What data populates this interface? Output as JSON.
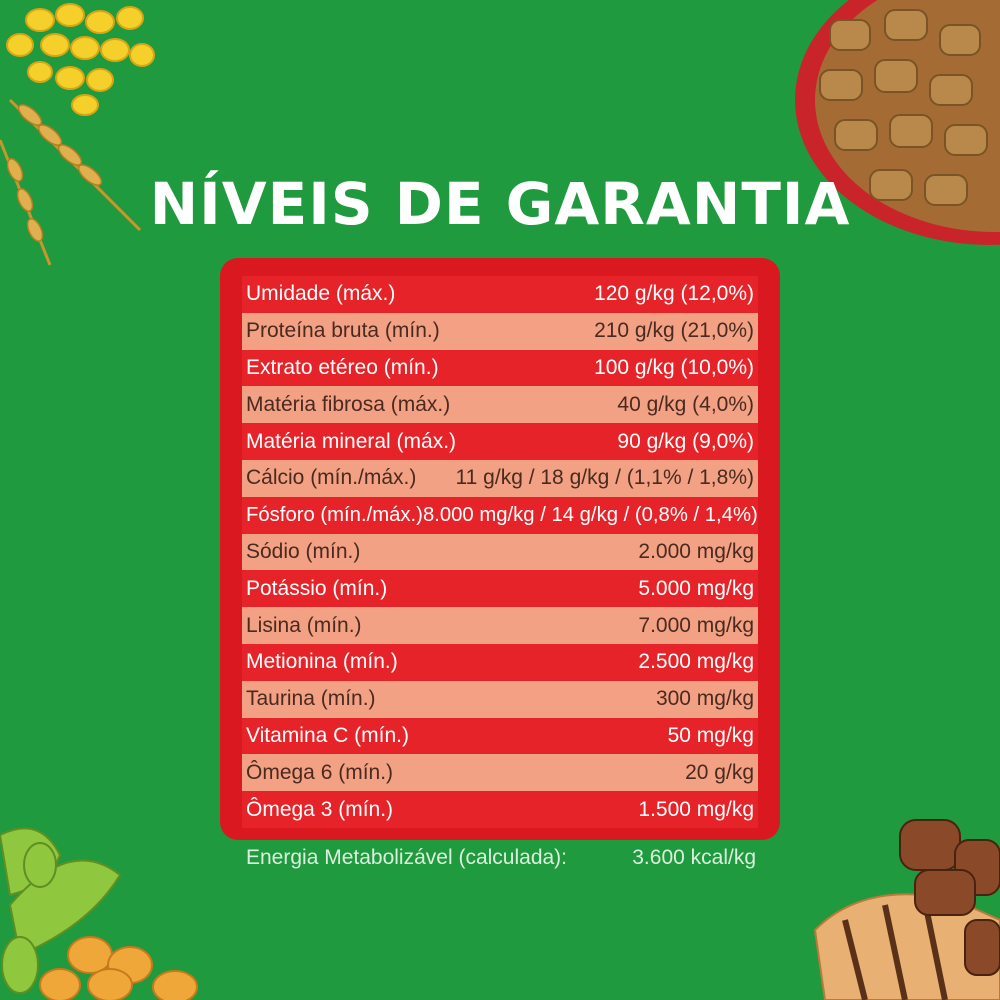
{
  "title": "NÍVEIS DE GARANTIA",
  "colors": {
    "background": "#1f9a3e",
    "table_border": "#d9191f",
    "row_dark": "#e52328",
    "row_light": "#f3a184"
  },
  "rows": [
    {
      "label": "Umidade (máx.)",
      "value": "120 g/kg (12,0%)"
    },
    {
      "label": "Proteína bruta (mín.)",
      "value": "210 g/kg (21,0%)"
    },
    {
      "label": "Extrato etéreo (mín.)",
      "value": "100 g/kg (10,0%)"
    },
    {
      "label": "Matéria fibrosa (máx.)",
      "value": "40 g/kg (4,0%)"
    },
    {
      "label": "Matéria mineral (máx.)",
      "value": "90 g/kg (9,0%)"
    },
    {
      "label": "Cálcio (mín./máx.)",
      "value": "11 g/kg / 18 g/kg / (1,1% / 1,8%)"
    },
    {
      "label": "Fósforo (mín./máx.)",
      "value": "8.000 mg/kg / 14 g/kg / (0,8% / 1,4%)"
    },
    {
      "label": "Sódio (mín.)",
      "value": "2.000 mg/kg"
    },
    {
      "label": "Potássio (mín.)",
      "value": "5.000 mg/kg"
    },
    {
      "label": "Lisina (mín.)",
      "value": "7.000 mg/kg"
    },
    {
      "label": "Metionina (mín.)",
      "value": "2.500 mg/kg"
    },
    {
      "label": "Taurina (mín.)",
      "value": "300 mg/kg"
    },
    {
      "label": "Vitamina C (mín.)",
      "value": "50 mg/kg"
    },
    {
      "label": "Ômega 6 (mín.)",
      "value": "20 g/kg"
    },
    {
      "label": "Ômega 3 (mín.)",
      "value": "1.500 mg/kg"
    }
  ],
  "energy": {
    "label": "Energia Metabolizável (calculada):",
    "value": "3.600 kcal/kg"
  },
  "decorations": [
    "corn-kernels",
    "wheat-stalk",
    "kibble-bowl",
    "soybeans",
    "grilled-meat"
  ]
}
